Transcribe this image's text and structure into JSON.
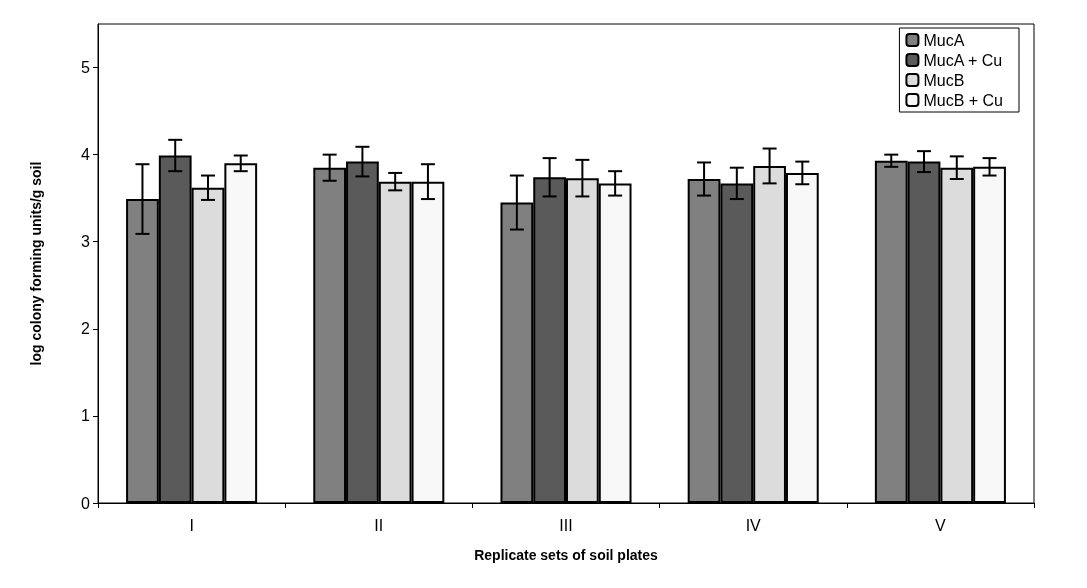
{
  "chart_data": {
    "type": "bar",
    "xlabel": "Replicate sets of soil plates",
    "ylabel": "log colony forming units/g soil",
    "categories": [
      "I",
      "II",
      "III",
      "IV",
      "V"
    ],
    "series": [
      {
        "name": "MucA",
        "color": "#808080",
        "values": [
          3.49,
          3.85,
          3.45,
          3.72,
          3.93
        ],
        "errors": [
          0.4,
          0.15,
          0.31,
          0.19,
          0.07
        ]
      },
      {
        "name": "MucA + Cu",
        "color": "#5a5a5a",
        "values": [
          3.99,
          3.92,
          3.74,
          3.67,
          3.92
        ],
        "errors": [
          0.18,
          0.17,
          0.22,
          0.18,
          0.12
        ]
      },
      {
        "name": "MucB",
        "color": "#dcdcdc",
        "values": [
          3.62,
          3.69,
          3.73,
          3.87,
          3.85
        ],
        "errors": [
          0.14,
          0.1,
          0.21,
          0.2,
          0.13
        ]
      },
      {
        "name": "MucB + Cu",
        "color": "#f8f8f8",
        "values": [
          3.9,
          3.69,
          3.67,
          3.79,
          3.86
        ],
        "errors": [
          0.09,
          0.2,
          0.14,
          0.13,
          0.1
        ]
      }
    ],
    "ylim": [
      0,
      5.5
    ],
    "yticks": [
      0,
      1,
      2,
      3,
      4,
      5
    ],
    "grid": false,
    "legend": "top right"
  }
}
